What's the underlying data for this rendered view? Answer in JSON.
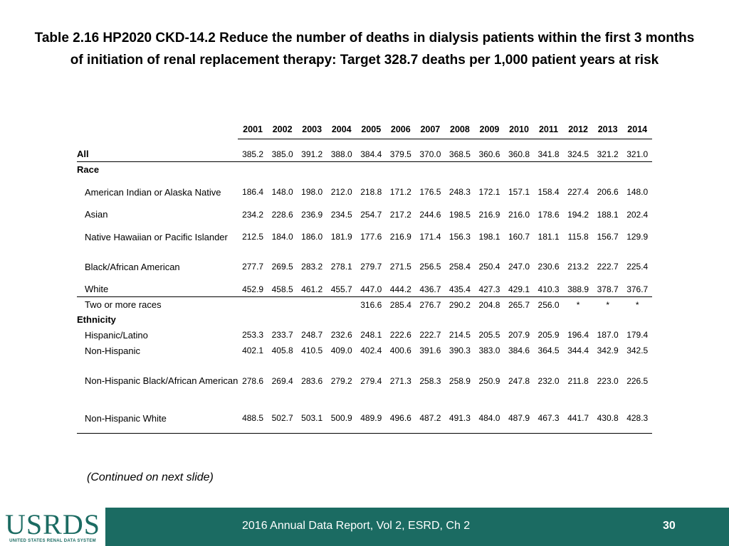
{
  "title": "Table 2.16  HP2020 CKD-14.2 Reduce the number of deaths in dialysis patients within the first 3 months of initiation of renal replacement therapy: Target 328.7 deaths per 1,000 patient years at risk",
  "years": [
    "2001",
    "2002",
    "2003",
    "2004",
    "2005",
    "2006",
    "2007",
    "2008",
    "2009",
    "2010",
    "2011",
    "2012",
    "2013",
    "2014"
  ],
  "rows": {
    "all": {
      "label": "All",
      "values": [
        "385.2",
        "385.0",
        "391.2",
        "388.0",
        "384.4",
        "379.5",
        "370.0",
        "368.5",
        "360.6",
        "360.8",
        "341.8",
        "324.5",
        "321.2",
        "321.0"
      ]
    },
    "race_heading": "Race",
    "american_indian": {
      "label": "American Indian or Alaska Native",
      "values": [
        "186.4",
        "148.0",
        "198.0",
        "212.0",
        "218.8",
        "171.2",
        "176.5",
        "248.3",
        "172.1",
        "157.1",
        "158.4",
        "227.4",
        "206.6",
        "148.0"
      ]
    },
    "asian": {
      "label": "Asian",
      "values": [
        "234.2",
        "228.6",
        "236.9",
        "234.5",
        "254.7",
        "217.2",
        "244.6",
        "198.5",
        "216.9",
        "216.0",
        "178.6",
        "194.2",
        "188.1",
        "202.4"
      ]
    },
    "native_hawaiian": {
      "label": "Native Hawaiian or Pacific Islander",
      "values": [
        "212.5",
        "184.0",
        "186.0",
        "181.9",
        "177.6",
        "216.9",
        "171.4",
        "156.3",
        "198.1",
        "160.7",
        "181.1",
        "115.8",
        "156.7",
        "129.9"
      ]
    },
    "black": {
      "label": "Black/African American",
      "values": [
        "277.7",
        "269.5",
        "283.2",
        "278.1",
        "279.7",
        "271.5",
        "256.5",
        "258.4",
        "250.4",
        "247.0",
        "230.6",
        "213.2",
        "222.7",
        "225.4"
      ]
    },
    "white": {
      "label": "White",
      "values": [
        "452.9",
        "458.5",
        "461.2",
        "455.7",
        "447.0",
        "444.2",
        "436.7",
        "435.4",
        "427.3",
        "429.1",
        "410.3",
        "388.9",
        "378.7",
        "376.7"
      ]
    },
    "two_or_more": {
      "label": "Two or more races",
      "values": [
        "",
        "",
        "",
        "",
        "316.6",
        "285.4",
        "276.7",
        "290.2",
        "204.8",
        "265.7",
        "256.0",
        "*",
        "*",
        "*"
      ]
    },
    "ethnicity_heading": "Ethnicity",
    "hispanic": {
      "label": "Hispanic/Latino",
      "values": [
        "253.3",
        "233.7",
        "248.7",
        "232.6",
        "248.1",
        "222.6",
        "222.7",
        "214.5",
        "205.5",
        "207.9",
        "205.9",
        "196.4",
        "187.0",
        "179.4"
      ]
    },
    "non_hispanic": {
      "label": "Non-Hispanic",
      "values": [
        "402.1",
        "405.8",
        "410.5",
        "409.0",
        "402.4",
        "400.6",
        "391.6",
        "390.3",
        "383.0",
        "384.6",
        "364.5",
        "344.4",
        "342.9",
        "342.5"
      ]
    },
    "nh_black": {
      "label": "Non-Hispanic Black/African American",
      "values": [
        "278.6",
        "269.4",
        "283.6",
        "279.2",
        "279.4",
        "271.3",
        "258.3",
        "258.9",
        "250.9",
        "247.8",
        "232.0",
        "211.8",
        "223.0",
        "226.5"
      ]
    },
    "nh_white": {
      "label": "Non-Hispanic White",
      "values": [
        "488.5",
        "502.7",
        "503.1",
        "500.9",
        "489.9",
        "496.6",
        "487.2",
        "491.3",
        "484.0",
        "487.9",
        "467.3",
        "441.7",
        "430.8",
        "428.3"
      ]
    }
  },
  "continued": "(Continued on next slide)",
  "footer": {
    "logo_text": "USRDS",
    "logo_sub": "UNITED STATES RENAL DATA SYSTEM",
    "report": "2016 Annual Data Report, Vol 2, ESRD, Ch 2",
    "page": "30"
  },
  "colors": {
    "footer_bg": "#1b6b62",
    "logo": "#1b6b62"
  }
}
